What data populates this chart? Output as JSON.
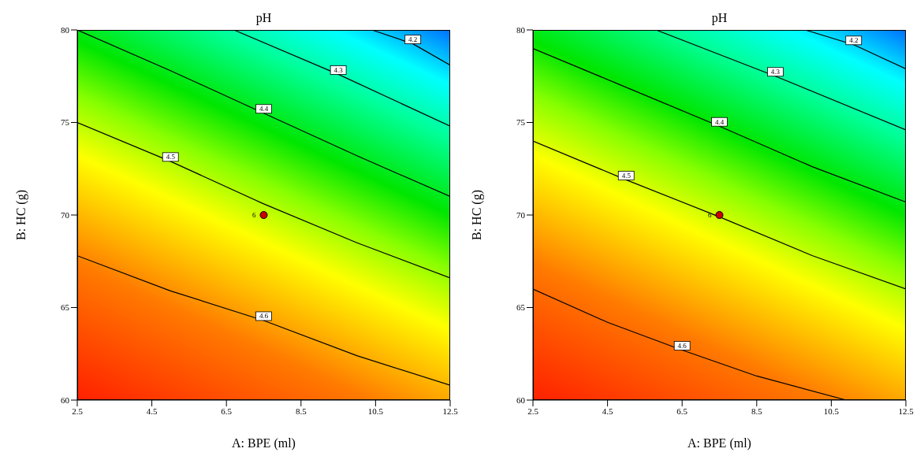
{
  "chart_data": [
    {
      "type": "line",
      "title": "pH",
      "xlabel": "A: BPE (ml)",
      "ylabel": "B: HC (g)",
      "xlim": [
        2.5,
        12.5
      ],
      "xticks": [
        2.5,
        4.5,
        6.5,
        8.5,
        10.5,
        12.5
      ],
      "ylim": [
        60,
        80
      ],
      "yticks": [
        60,
        65,
        70,
        75,
        80
      ],
      "grid": false,
      "legend": false,
      "series": [
        {
          "name": "4.6",
          "color": "#000000",
          "x": [
            2.5,
            5,
            7.5,
            10,
            12.5
          ],
          "values": [
            67.8,
            65.9,
            64.3,
            62.4,
            60.8
          ]
        },
        {
          "name": "4.5",
          "color": "#000000",
          "x": [
            2.5,
            5,
            7.5,
            10,
            12.5
          ],
          "values": [
            75.0,
            72.9,
            70.6,
            68.5,
            66.6
          ]
        },
        {
          "name": "4.4",
          "color": "#000000",
          "x": [
            2.5,
            5,
            7.5,
            10,
            12.5
          ],
          "values": [
            80.0,
            77.8,
            75.5,
            73.2,
            71.0
          ]
        },
        {
          "name": "4.3",
          "color": "#000000",
          "x": [
            6.7,
            9.5,
            12.5
          ],
          "values": [
            80.0,
            77.6,
            74.8
          ]
        },
        {
          "name": "4.2",
          "color": "#000000",
          "x": [
            10.4,
            11.5,
            12.5
          ],
          "values": [
            80.0,
            79.25,
            78.1
          ]
        },
        {
          "type": "scatter",
          "color": "#cc0000",
          "x": [
            7.5
          ],
          "values": [
            70
          ]
        }
      ],
      "annotations": [
        {
          "text": "6",
          "x": 7.5,
          "y": 70
        }
      ]
    },
    {
      "type": "line",
      "title": "pH",
      "xlabel": "A: BPE (ml)",
      "ylabel": "B: HC (g)",
      "xlim": [
        2.5,
        12.5
      ],
      "xticks": [
        2.5,
        4.5,
        6.5,
        8.5,
        10.5,
        12.5
      ],
      "ylim": [
        60,
        80
      ],
      "yticks": [
        60,
        65,
        70,
        75,
        80
      ],
      "grid": false,
      "legend": false,
      "series": [
        {
          "name": "4.6",
          "color": "#000000",
          "x": [
            2.5,
            4.5,
            6.5,
            8.5,
            10.9
          ],
          "values": [
            66.0,
            64.2,
            62.7,
            61.3,
            60.0
          ]
        },
        {
          "name": "4.5",
          "color": "#000000",
          "x": [
            2.5,
            5,
            7.5,
            10,
            12.5
          ],
          "values": [
            74.0,
            71.9,
            69.9,
            67.8,
            66.0
          ]
        },
        {
          "name": "4.4",
          "color": "#000000",
          "x": [
            2.5,
            5,
            7.5,
            10,
            12.5
          ],
          "values": [
            79.0,
            76.9,
            74.8,
            72.6,
            70.7
          ]
        },
        {
          "name": "4.3",
          "color": "#000000",
          "x": [
            5.8,
            9,
            12.5
          ],
          "values": [
            80.0,
            77.5,
            74.6
          ]
        },
        {
          "name": "4.2",
          "color": "#000000",
          "x": [
            9.8,
            11.1,
            12.5
          ],
          "values": [
            80.0,
            79.2,
            77.9
          ]
        },
        {
          "type": "scatter",
          "color": "#cc0000",
          "x": [
            7.5
          ],
          "values": [
            70
          ]
        }
      ],
      "annotations": [
        {
          "text": "6",
          "x": 7.5,
          "y": 70
        }
      ]
    }
  ]
}
